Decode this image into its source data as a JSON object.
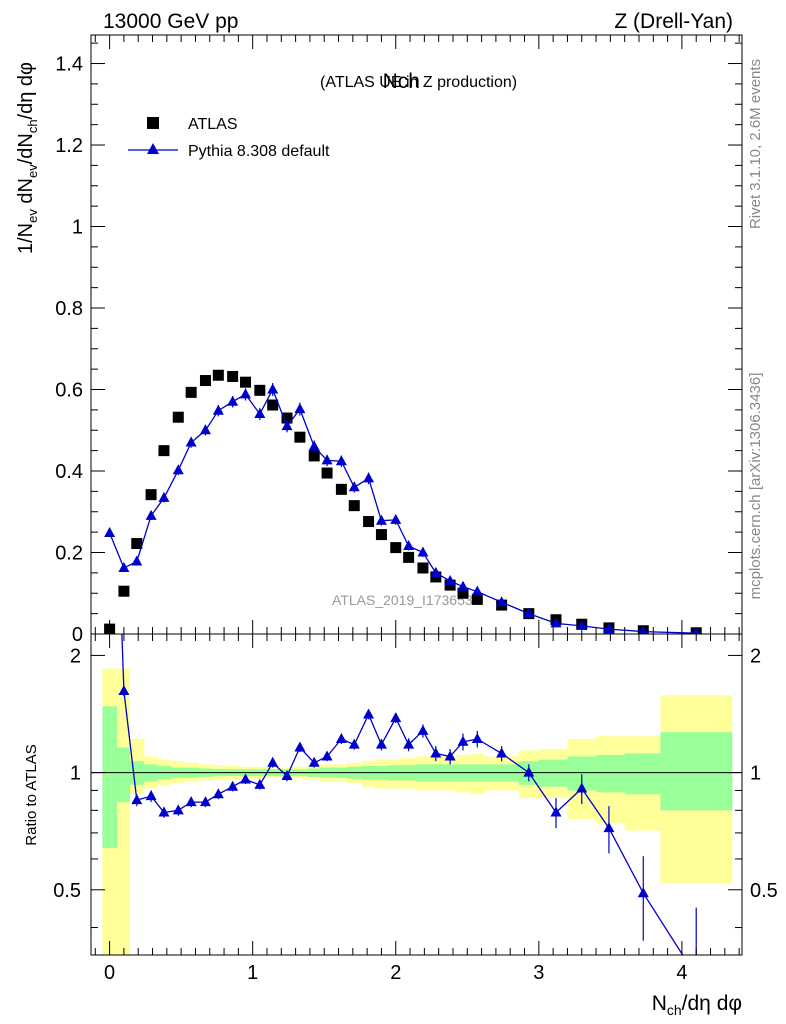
{
  "header": {
    "left": "13000 GeV pp",
    "right": "Z (Drell-Yan)"
  },
  "side_labels": {
    "rivet": "Rivet 3.1.10,  2.6M events",
    "mcplots": "mcplots.cern.ch [arXiv:1306.3436]"
  },
  "colors": {
    "data": "#000000",
    "mc": "#0000cc",
    "band_inner": "#99ff99",
    "band_outer": "#ffff99"
  },
  "chart_data": [
    {
      "type": "scatter",
      "panel": "main",
      "title": "Nch",
      "subtitle": "(ATLAS UE in Z production)",
      "watermark": "ATLAS_2019_I1736531",
      "ylabel": "1/N_ev dN_ev/dN_ch/dη dφ",
      "xlim": [
        -0.13,
        4.42
      ],
      "ylim": [
        0,
        1.47
      ],
      "yticks": [
        0,
        0.2,
        0.4,
        0.6,
        0.8,
        1,
        1.2,
        1.4
      ],
      "ytick_labels": [
        "0",
        "0.2",
        "0.4",
        "0.6",
        "0.8",
        "1",
        "1.2",
        "1.4"
      ],
      "legend": {
        "placement": "top-left",
        "entries": [
          "ATLAS",
          "Pythia 8.308 default"
        ]
      },
      "series": [
        {
          "name": "ATLAS",
          "marker": "square",
          "x": [
            0.0,
            0.1,
            0.19,
            0.29,
            0.38,
            0.48,
            0.57,
            0.67,
            0.76,
            0.86,
            0.95,
            1.05,
            1.14,
            1.24,
            1.33,
            1.43,
            1.52,
            1.62,
            1.71,
            1.81,
            1.9,
            2.0,
            2.09,
            2.19,
            2.28,
            2.38,
            2.47,
            2.57,
            2.74,
            2.93,
            3.12,
            3.3,
            3.49,
            3.73,
            4.1
          ],
          "y": [
            0.012,
            0.105,
            0.222,
            0.342,
            0.45,
            0.532,
            0.593,
            0.622,
            0.635,
            0.632,
            0.618,
            0.598,
            0.562,
            0.53,
            0.483,
            0.437,
            0.395,
            0.355,
            0.315,
            0.276,
            0.244,
            0.212,
            0.188,
            0.162,
            0.14,
            0.12,
            0.1,
            0.085,
            0.071,
            0.05,
            0.035,
            0.024,
            0.015,
            0.008,
            0.003
          ]
        },
        {
          "name": "Pythia 8.308 default",
          "marker": "triangle",
          "x": [
            0.0,
            0.1,
            0.19,
            0.29,
            0.38,
            0.48,
            0.57,
            0.67,
            0.76,
            0.86,
            0.95,
            1.05,
            1.14,
            1.24,
            1.33,
            1.43,
            1.52,
            1.62,
            1.71,
            1.81,
            1.9,
            2.0,
            2.09,
            2.19,
            2.28,
            2.38,
            2.47,
            2.57,
            2.74,
            2.93,
            3.12,
            3.3,
            3.49,
            3.73,
            4.1
          ],
          "y": [
            0.248,
            0.162,
            0.178,
            0.29,
            0.334,
            0.402,
            0.47,
            0.5,
            0.548,
            0.57,
            0.588,
            0.54,
            0.6,
            0.51,
            0.552,
            0.46,
            0.426,
            0.424,
            0.36,
            0.382,
            0.278,
            0.28,
            0.216,
            0.2,
            0.15,
            0.13,
            0.116,
            0.104,
            0.078,
            0.05,
            0.026,
            0.02,
            0.012,
            0.006,
            0.002
          ],
          "err": [
            0.01,
            0.008,
            0.008,
            0.01,
            0.011,
            0.012,
            0.013,
            0.013,
            0.014,
            0.014,
            0.015,
            0.015,
            0.016,
            0.015,
            0.016,
            0.015,
            0.014,
            0.014,
            0.013,
            0.014,
            0.012,
            0.012,
            0.011,
            0.011,
            0.009,
            0.009,
            0.008,
            0.008,
            0.006,
            0.005,
            0.004,
            0.003,
            0.003,
            0.002,
            0.001
          ]
        }
      ]
    },
    {
      "type": "line",
      "panel": "ratio",
      "ylabel": "Ratio to ATLAS",
      "xlabel": "N_ch/dη dφ",
      "xlim": [
        -0.13,
        4.42
      ],
      "ylim": [
        0.34,
        2.27
      ],
      "yticks": [
        0.5,
        1,
        2
      ],
      "ytick_labels": [
        "0.5",
        "1",
        "2"
      ],
      "xticks": [
        0,
        1,
        2,
        3,
        4
      ],
      "xtick_labels": [
        "0",
        "1",
        "2",
        "3",
        "4"
      ],
      "reference_line": 1,
      "bands": {
        "edges": [
          -0.05,
          0.05,
          0.14,
          0.24,
          0.33,
          0.43,
          0.52,
          0.62,
          0.71,
          0.81,
          0.9,
          1.0,
          1.09,
          1.19,
          1.28,
          1.38,
          1.47,
          1.57,
          1.66,
          1.76,
          1.85,
          1.95,
          2.04,
          2.14,
          2.23,
          2.33,
          2.42,
          2.52,
          2.62,
          2.86,
          3.0,
          3.2,
          3.4,
          3.6,
          3.85,
          4.35
        ],
        "inner_low": [
          0.64,
          0.84,
          0.93,
          0.95,
          0.96,
          0.97,
          0.97,
          0.975,
          0.978,
          0.98,
          0.98,
          0.98,
          0.98,
          0.98,
          0.98,
          0.975,
          0.97,
          0.97,
          0.965,
          0.96,
          0.96,
          0.955,
          0.955,
          0.95,
          0.95,
          0.95,
          0.95,
          0.95,
          0.95,
          0.93,
          0.92,
          0.9,
          0.89,
          0.88,
          0.8
        ],
        "inner_high": [
          1.48,
          1.16,
          1.07,
          1.05,
          1.04,
          1.03,
          1.03,
          1.025,
          1.022,
          1.02,
          1.02,
          1.02,
          1.02,
          1.02,
          1.02,
          1.025,
          1.03,
          1.03,
          1.035,
          1.04,
          1.04,
          1.045,
          1.045,
          1.05,
          1.05,
          1.05,
          1.05,
          1.05,
          1.05,
          1.07,
          1.08,
          1.1,
          1.11,
          1.12,
          1.27
        ],
        "outer_low": [
          0.3,
          0.3,
          0.88,
          0.91,
          0.93,
          0.94,
          0.95,
          0.955,
          0.96,
          0.96,
          0.965,
          0.965,
          0.97,
          0.97,
          0.965,
          0.96,
          0.95,
          0.95,
          0.94,
          0.92,
          0.91,
          0.91,
          0.91,
          0.9,
          0.9,
          0.9,
          0.89,
          0.88,
          0.9,
          0.86,
          0.86,
          0.76,
          0.74,
          0.71,
          0.52
        ],
        "outer_high": [
          1.85,
          1.85,
          1.22,
          1.1,
          1.08,
          1.07,
          1.06,
          1.05,
          1.045,
          1.04,
          1.035,
          1.035,
          1.03,
          1.03,
          1.035,
          1.04,
          1.05,
          1.05,
          1.06,
          1.07,
          1.08,
          1.08,
          1.09,
          1.1,
          1.1,
          1.1,
          1.11,
          1.12,
          1.1,
          1.14,
          1.15,
          1.22,
          1.24,
          1.24,
          1.58
        ]
      },
      "series": [
        {
          "name": "Pythia 8.308 default",
          "x": [
            0.1,
            0.19,
            0.29,
            0.38,
            0.48,
            0.57,
            0.67,
            0.76,
            0.86,
            0.95,
            1.05,
            1.14,
            1.24,
            1.33,
            1.43,
            1.52,
            1.62,
            1.71,
            1.81,
            1.9,
            2.0,
            2.09,
            2.19,
            2.28,
            2.38,
            2.47,
            2.57,
            2.74,
            2.93,
            3.12,
            3.3,
            3.49,
            3.73,
            4.1
          ],
          "y": [
            1.62,
            0.85,
            0.87,
            0.79,
            0.8,
            0.84,
            0.84,
            0.88,
            0.92,
            0.96,
            0.93,
            1.06,
            0.98,
            1.16,
            1.06,
            1.1,
            1.22,
            1.18,
            1.41,
            1.18,
            1.38,
            1.18,
            1.28,
            1.12,
            1.1,
            1.2,
            1.22,
            1.12,
            1.0,
            0.79,
            0.91,
            0.72,
            0.49,
            0.3
          ],
          "err": [
            0.05,
            0.03,
            0.03,
            0.025,
            0.025,
            0.025,
            0.025,
            0.025,
            0.025,
            0.025,
            0.025,
            0.03,
            0.03,
            0.03,
            0.03,
            0.03,
            0.035,
            0.035,
            0.04,
            0.04,
            0.04,
            0.045,
            0.05,
            0.05,
            0.05,
            0.06,
            0.06,
            0.05,
            0.05,
            0.07,
            0.08,
            0.1,
            0.12,
            0.15
          ]
        }
      ]
    }
  ]
}
